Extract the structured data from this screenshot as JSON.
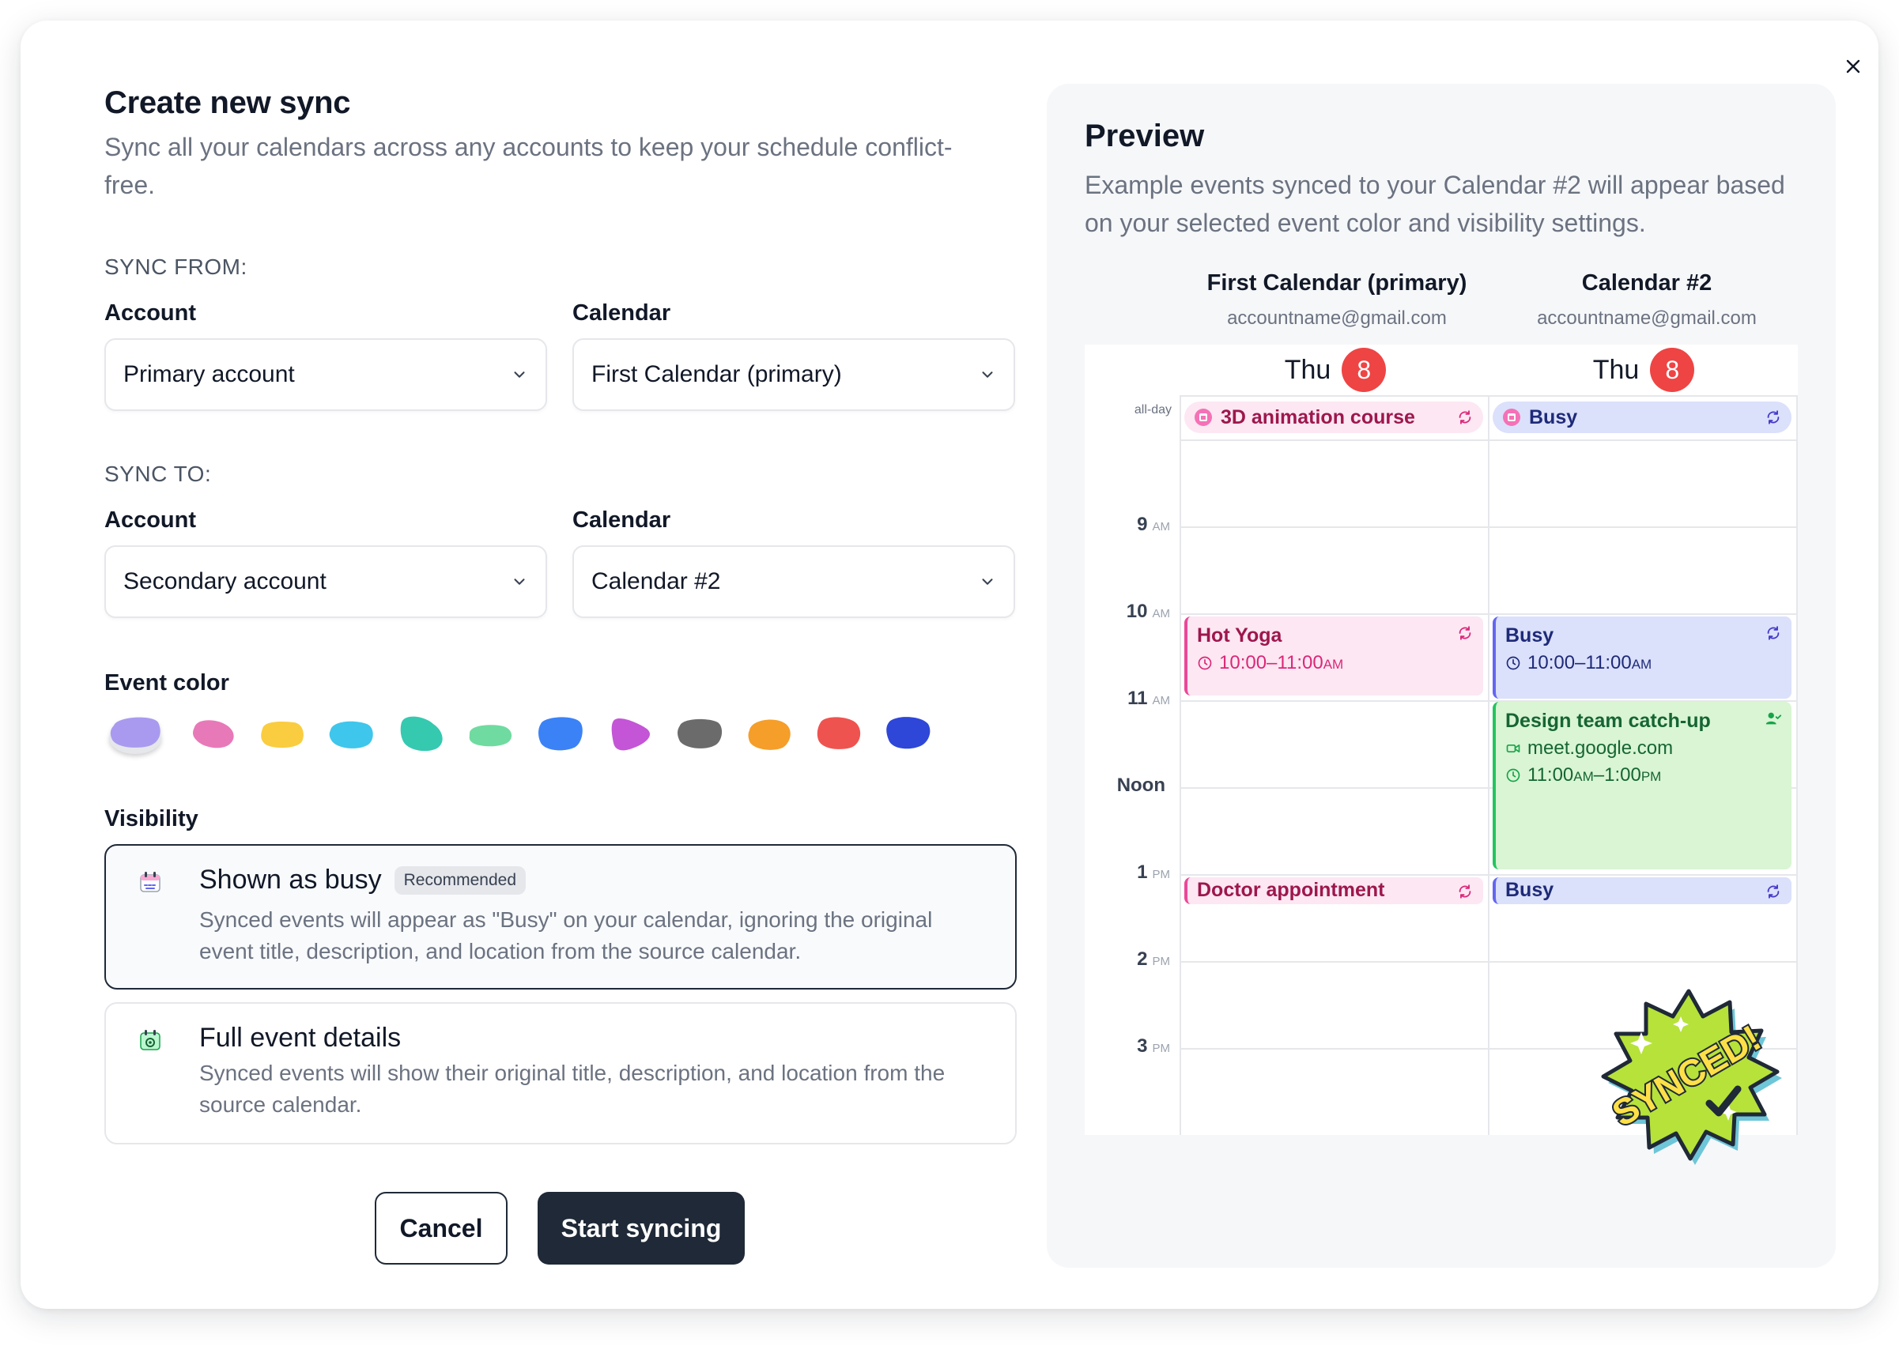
{
  "dialog": {
    "title": "Create new sync",
    "subtitle": "Sync all your calendars across any accounts to keep your schedule conflict-free.",
    "close_icon": "close-icon"
  },
  "sync_from": {
    "section_label": "SYNC FROM:",
    "account_label": "Account",
    "account_value": "Primary account",
    "calendar_label": "Calendar",
    "calendar_value": "First Calendar (primary)"
  },
  "sync_to": {
    "section_label": "SYNC TO:",
    "account_label": "Account",
    "account_value": "Secondary account",
    "calendar_label": "Calendar",
    "calendar_value": "Calendar #2"
  },
  "event_color": {
    "label": "Event color",
    "swatches": [
      "#a99af0",
      "#e879b9",
      "#facc3f",
      "#3fc6ec",
      "#35c9b0",
      "#6fdba0",
      "#3b82f6",
      "#c455d6",
      "#6b6b6b",
      "#f59e2a",
      "#ef5350",
      "#2e47d8"
    ],
    "selected_index": 0
  },
  "visibility": {
    "label": "Visibility",
    "options": [
      {
        "title": "Shown as busy",
        "badge": "Recommended",
        "description": "Synced events will appear as \"Busy\" on your calendar, ignoring the original event title, description, and location from the source calendar.",
        "icon": "busy-calendar-icon",
        "selected": true
      },
      {
        "title": "Full event details",
        "badge": "",
        "description": "Synced events will show their original title, description, and location from the source calendar.",
        "icon": "details-calendar-icon",
        "selected": false
      }
    ]
  },
  "actions": {
    "cancel": "Cancel",
    "start": "Start syncing"
  },
  "preview": {
    "title": "Preview",
    "subtitle": "Example events synced to your Calendar #2 will appear based on your selected event color and visibility settings.",
    "calendars": [
      {
        "name": "First Calendar (primary)",
        "email": "accountname@gmail.com",
        "day": "Thu",
        "date": "8"
      },
      {
        "name": "Calendar #2",
        "email": "accountname@gmail.com",
        "day": "Thu",
        "date": "8"
      }
    ],
    "all_day_label": "all-day",
    "time_labels": [
      {
        "hour": "9",
        "suffix": "AM"
      },
      {
        "hour": "10",
        "suffix": "AM"
      },
      {
        "hour": "11",
        "suffix": "AM"
      },
      {
        "hour": "Noon",
        "suffix": ""
      },
      {
        "hour": "1",
        "suffix": "PM"
      },
      {
        "hour": "2",
        "suffix": "PM"
      },
      {
        "hour": "3",
        "suffix": "PM"
      }
    ],
    "events": {
      "allday_source": "3D animation course",
      "allday_target": "Busy",
      "yoga_title": "Hot Yoga",
      "yoga_time": "10:00–11:00",
      "yoga_suffix": "AM",
      "busy1_title": "Busy",
      "busy1_time": "10:00–11:00",
      "busy1_suffix": "AM",
      "design_title": "Design team catch-up",
      "design_link": "meet.google.com",
      "design_time_a": "11:00",
      "design_suffix_a": "AM",
      "design_time_b": "–1:00",
      "design_suffix_b": "PM",
      "doctor_title": "Doctor appointment",
      "busy2_title": "Busy"
    },
    "sticker_text": "SYNCED!"
  }
}
